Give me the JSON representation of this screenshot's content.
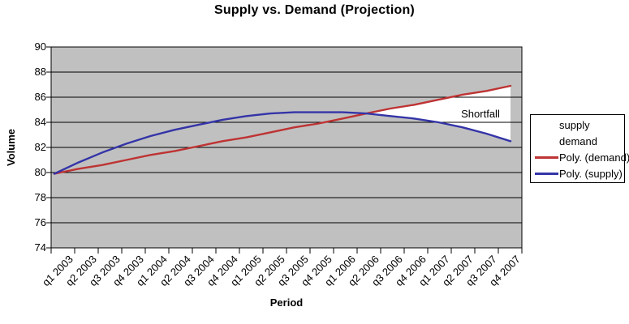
{
  "legend": {
    "items": [
      {
        "label": "supply"
      },
      {
        "label": "demand"
      },
      {
        "label": "Poly. (demand)"
      },
      {
        "label": "Poly. (supply)"
      }
    ]
  },
  "chart_data": {
    "type": "line",
    "title": "Supply vs. Demand (Projection)",
    "xlabel": "Period",
    "ylabel": "Volume",
    "ylim": [
      74,
      90
    ],
    "ytick_step": 2,
    "yticks": [
      74,
      76,
      78,
      80,
      82,
      84,
      86,
      88,
      90
    ],
    "grid": true,
    "legend_position": "right",
    "plot_bg": "#c0c0c0",
    "categories": [
      "q1 2003",
      "q2 2003",
      "q3 2003",
      "q4 2003",
      "q1 2004",
      "q2 2004",
      "q3 2004",
      "q4 2004",
      "q1 2005",
      "q2 2005",
      "q3 2005",
      "q4 2005",
      "q1 2006",
      "q2 2006",
      "q3 2006",
      "q4 2006",
      "q1 2007",
      "q2 2007",
      "q3 2007",
      "q4 2007"
    ],
    "series": [
      {
        "name": "Poly. (demand)",
        "color": "#be3333",
        "values": [
          79.9,
          80.3,
          80.6,
          81.0,
          81.4,
          81.7,
          82.1,
          82.5,
          82.8,
          83.2,
          83.6,
          83.9,
          84.3,
          84.7,
          85.1,
          85.4,
          85.8,
          86.2,
          86.5,
          86.9
        ]
      },
      {
        "name": "Poly. (supply)",
        "color": "#3434a8",
        "values": [
          79.9,
          80.8,
          81.6,
          82.3,
          82.9,
          83.4,
          83.8,
          84.2,
          84.5,
          84.7,
          84.8,
          84.8,
          84.8,
          84.7,
          84.5,
          84.3,
          84.0,
          83.6,
          83.1,
          82.5
        ]
      }
    ],
    "annotations": [
      {
        "text": "Shortfall",
        "fill": "#ffffff"
      }
    ]
  }
}
